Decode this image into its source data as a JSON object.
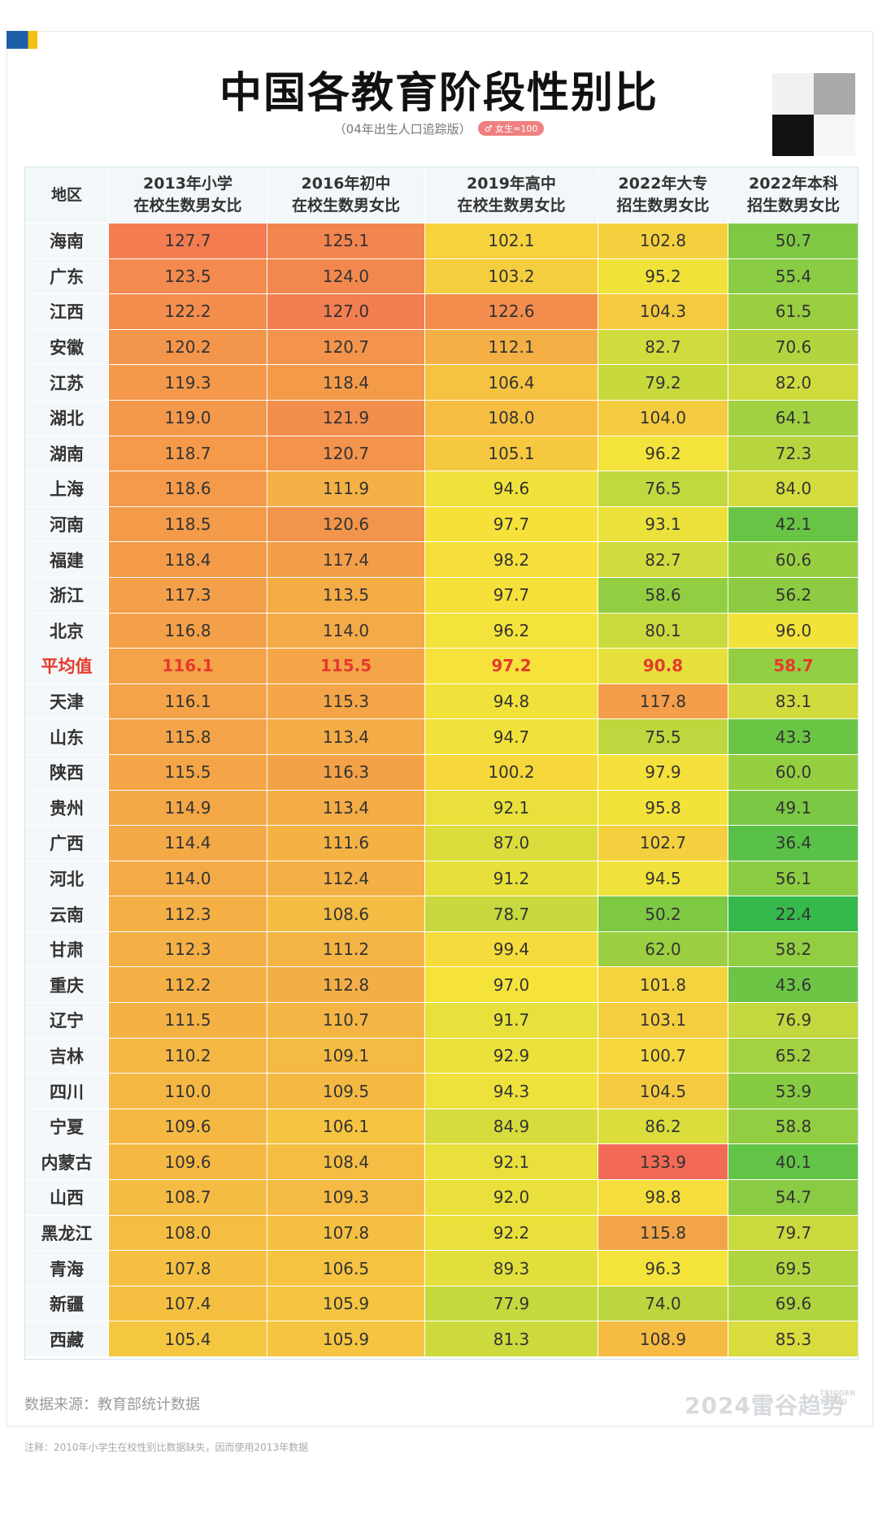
{
  "title": "中国各教育阶段性别比",
  "subtitle": "（04年出生人口追踪版）",
  "badge": "♂ 女生=100",
  "source": "数据来源：教育部统计数据",
  "brand": "2024雷谷趋势",
  "brand_sub": "TRIGGER TREND",
  "note": "注释：2010年小学生在校性别比数据缺失，因而使用2013年数据",
  "colors": {
    "heat_low": "#2fb84a",
    "heat_mid": "#f6e33a",
    "heat_high": "#f26a55",
    "average_text": "#e53a2c"
  },
  "chart_data": {
    "type": "table",
    "title": "中国各教育阶段性别比",
    "columns": [
      "地区",
      "2013年小学\n在校生数男女比",
      "2016年初中\n在校生数男女比",
      "2019年高中\n在校生数男女比",
      "2022年大专\n招生数男女比",
      "2022年本科\n招生数男女比"
    ],
    "rows": [
      [
        "海南",
        "127.7",
        "125.1",
        "102.1",
        "102.8",
        "50.7"
      ],
      [
        "广东",
        "123.5",
        "124.0",
        "103.2",
        "95.2",
        "55.4"
      ],
      [
        "江西",
        "122.2",
        "127.0",
        "122.6",
        "104.3",
        "61.5"
      ],
      [
        "安徽",
        "120.2",
        "120.7",
        "112.1",
        "82.7",
        "70.6"
      ],
      [
        "江苏",
        "119.3",
        "118.4",
        "106.4",
        "79.2",
        "82.0"
      ],
      [
        "湖北",
        "119.0",
        "121.9",
        "108.0",
        "104.0",
        "64.1"
      ],
      [
        "湖南",
        "118.7",
        "120.7",
        "105.1",
        "96.2",
        "72.3"
      ],
      [
        "上海",
        "118.6",
        "111.9",
        "94.6",
        "76.5",
        "84.0"
      ],
      [
        "河南",
        "118.5",
        "120.6",
        "97.7",
        "93.1",
        "42.1"
      ],
      [
        "福建",
        "118.4",
        "117.4",
        "98.2",
        "82.7",
        "60.6"
      ],
      [
        "浙江",
        "117.3",
        "113.5",
        "97.7",
        "58.6",
        "56.2"
      ],
      [
        "北京",
        "116.8",
        "114.0",
        "96.2",
        "80.1",
        "96.0"
      ],
      [
        "平均值",
        "116.1",
        "115.5",
        "97.2",
        "90.8",
        "58.7"
      ],
      [
        "天津",
        "116.1",
        "115.3",
        "94.8",
        "117.8",
        "83.1"
      ],
      [
        "山东",
        "115.8",
        "113.4",
        "94.7",
        "75.5",
        "43.3"
      ],
      [
        "陕西",
        "115.5",
        "116.3",
        "100.2",
        "97.9",
        "60.0"
      ],
      [
        "贵州",
        "114.9",
        "113.4",
        "92.1",
        "95.8",
        "49.1"
      ],
      [
        "广西",
        "114.4",
        "111.6",
        "87.0",
        "102.7",
        "36.4"
      ],
      [
        "河北",
        "114.0",
        "112.4",
        "91.2",
        "94.5",
        "56.1"
      ],
      [
        "云南",
        "112.3",
        "108.6",
        "78.7",
        "50.2",
        "22.4"
      ],
      [
        "甘肃",
        "112.3",
        "111.2",
        "99.4",
        "62.0",
        "58.2"
      ],
      [
        "重庆",
        "112.2",
        "112.8",
        "97.0",
        "101.8",
        "43.6"
      ],
      [
        "辽宁",
        "111.5",
        "110.7",
        "91.7",
        "103.1",
        "76.9"
      ],
      [
        "吉林",
        "110.2",
        "109.1",
        "92.9",
        "100.7",
        "65.2"
      ],
      [
        "四川",
        "110.0",
        "109.5",
        "94.3",
        "104.5",
        "53.9"
      ],
      [
        "宁夏",
        "109.6",
        "106.1",
        "84.9",
        "86.2",
        "58.8"
      ],
      [
        "内蒙古",
        "109.6",
        "108.4",
        "92.1",
        "133.9",
        "40.1"
      ],
      [
        "山西",
        "108.7",
        "109.3",
        "92.0",
        "98.8",
        "54.7"
      ],
      [
        "黑龙江",
        "108.0",
        "107.8",
        "92.2",
        "115.8",
        "79.7"
      ],
      [
        "青海",
        "107.8",
        "106.5",
        "89.3",
        "96.3",
        "69.5"
      ],
      [
        "新疆",
        "107.4",
        "105.9",
        "77.9",
        "74.0",
        "69.6"
      ],
      [
        "西藏",
        "105.4",
        "105.9",
        "81.3",
        "108.9",
        "85.3"
      ]
    ],
    "highlight_row": "平均值"
  }
}
